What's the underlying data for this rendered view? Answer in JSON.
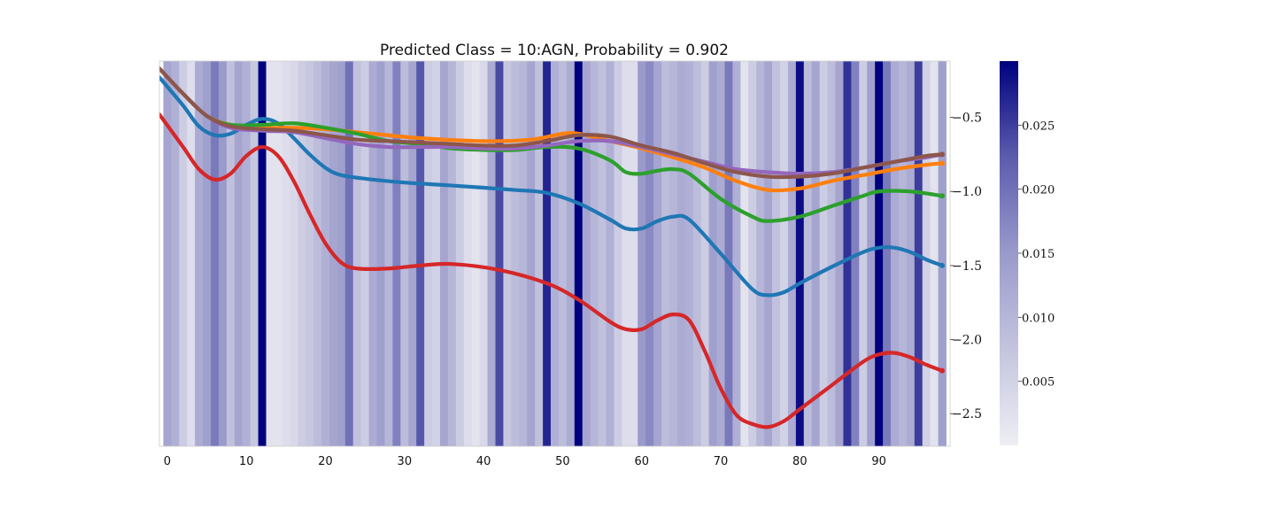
{
  "chart_data": {
    "type": "line",
    "title": "Predicted Class = 10:AGN, Probability = 0.902",
    "xlabel": "",
    "ylabel": "",
    "xlim": [
      -1,
      99
    ],
    "ylim": [
      -2.72,
      -0.12
    ],
    "y_axis_side": "right",
    "grid": false,
    "legend": "none",
    "x_ticks": [
      0,
      10,
      20,
      30,
      40,
      50,
      60,
      70,
      80,
      90
    ],
    "y_ticks": [
      -0.5,
      -1.0,
      -1.5,
      -2.0,
      -2.5
    ],
    "y_tick_labels": [
      "−0.5",
      "−1.0",
      "−1.5",
      "−2.0",
      "−2.5"
    ],
    "heatmap_background": {
      "description_values_per_timestep": true,
      "values": [
        0.013,
        0.011,
        0.006,
        0.003,
        0.012,
        0.014,
        0.019,
        0.015,
        0.008,
        0.013,
        0.011,
        0.007,
        0.03,
        0.002,
        0.002,
        0.003,
        0.004,
        0.006,
        0.007,
        0.009,
        0.011,
        0.013,
        0.014,
        0.02,
        0.008,
        0.006,
        0.012,
        0.014,
        0.01,
        0.018,
        0.009,
        0.013,
        0.023,
        0.006,
        0.005,
        0.013,
        0.01,
        0.006,
        0.003,
        0.002,
        0.004,
        0.012,
        0.024,
        0.007,
        0.009,
        0.01,
        0.013,
        0.008,
        0.027,
        0.011,
        0.009,
        0.012,
        0.03,
        0.013,
        0.01,
        0.008,
        0.011,
        0.006,
        0.003,
        0.003,
        0.015,
        0.017,
        0.013,
        0.009,
        0.01,
        0.012,
        0.011,
        0.009,
        0.006,
        0.014,
        0.012,
        0.019,
        0.011,
        0.002,
        0.006,
        0.01,
        0.013,
        0.008,
        0.005,
        0.012,
        0.029,
        0.009,
        0.013,
        0.006,
        0.009,
        0.013,
        0.026,
        0.018,
        0.006,
        0.014,
        0.03,
        0.019,
        0.012,
        0.01,
        0.012,
        0.025,
        0.005,
        0.002,
        0.014
      ],
      "colorbar": {
        "min": 0.0,
        "max": 0.03,
        "ticks": [
          0.005,
          0.01,
          0.015,
          0.02,
          0.025
        ],
        "tick_labels": [
          "0.005",
          "0.010",
          "0.015",
          "0.020",
          "0.025"
        ],
        "low_color": "#eeeef4",
        "high_color": "#00007f"
      }
    },
    "series": [
      {
        "color": "#1f77b4",
        "points": [
          [
            -1,
            -0.23
          ],
          [
            2,
            -0.42
          ],
          [
            4,
            -0.56
          ],
          [
            6,
            -0.62
          ],
          [
            8,
            -0.61
          ],
          [
            10,
            -0.55
          ],
          [
            12,
            -0.51
          ],
          [
            14,
            -0.54
          ],
          [
            16,
            -0.64
          ],
          [
            18,
            -0.75
          ],
          [
            20,
            -0.84
          ],
          [
            22,
            -0.89
          ],
          [
            26,
            -0.92
          ],
          [
            30,
            -0.94
          ],
          [
            36,
            -0.96
          ],
          [
            44,
            -0.99
          ],
          [
            48,
            -1.01
          ],
          [
            52,
            -1.08
          ],
          [
            56,
            -1.19
          ],
          [
            58,
            -1.25
          ],
          [
            60,
            -1.25
          ],
          [
            62,
            -1.2
          ],
          [
            64,
            -1.17
          ],
          [
            66,
            -1.19
          ],
          [
            70,
            -1.42
          ],
          [
            74,
            -1.66
          ],
          [
            76,
            -1.7
          ],
          [
            78,
            -1.68
          ],
          [
            80,
            -1.62
          ],
          [
            84,
            -1.51
          ],
          [
            88,
            -1.41
          ],
          [
            90,
            -1.38
          ],
          [
            92,
            -1.38
          ],
          [
            94,
            -1.41
          ],
          [
            96,
            -1.46
          ],
          [
            98,
            -1.5
          ]
        ]
      },
      {
        "color": "#ff7f0e",
        "points": [
          [
            -1,
            -0.17
          ],
          [
            2,
            -0.34
          ],
          [
            5,
            -0.49
          ],
          [
            8,
            -0.55
          ],
          [
            12,
            -0.57
          ],
          [
            16,
            -0.57
          ],
          [
            20,
            -0.58
          ],
          [
            26,
            -0.61
          ],
          [
            32,
            -0.64
          ],
          [
            40,
            -0.66
          ],
          [
            46,
            -0.65
          ],
          [
            50,
            -0.61
          ],
          [
            52,
            -0.61
          ],
          [
            56,
            -0.66
          ],
          [
            60,
            -0.71
          ],
          [
            64,
            -0.77
          ],
          [
            68,
            -0.84
          ],
          [
            72,
            -0.93
          ],
          [
            76,
            -0.99
          ],
          [
            80,
            -0.98
          ],
          [
            84,
            -0.93
          ],
          [
            88,
            -0.89
          ],
          [
            92,
            -0.85
          ],
          [
            96,
            -0.82
          ],
          [
            98,
            -0.81
          ]
        ]
      },
      {
        "color": "#2ca02c",
        "points": [
          [
            -1,
            -0.17
          ],
          [
            2,
            -0.34
          ],
          [
            5,
            -0.49
          ],
          [
            8,
            -0.55
          ],
          [
            12,
            -0.55
          ],
          [
            16,
            -0.54
          ],
          [
            20,
            -0.57
          ],
          [
            24,
            -0.61
          ],
          [
            28,
            -0.66
          ],
          [
            32,
            -0.68
          ],
          [
            36,
            -0.71
          ],
          [
            40,
            -0.72
          ],
          [
            44,
            -0.72
          ],
          [
            48,
            -0.7
          ],
          [
            52,
            -0.71
          ],
          [
            56,
            -0.79
          ],
          [
            58,
            -0.87
          ],
          [
            60,
            -0.88
          ],
          [
            62,
            -0.86
          ],
          [
            64,
            -0.85
          ],
          [
            66,
            -0.88
          ],
          [
            70,
            -1.05
          ],
          [
            74,
            -1.17
          ],
          [
            76,
            -1.2
          ],
          [
            80,
            -1.17
          ],
          [
            84,
            -1.1
          ],
          [
            88,
            -1.03
          ],
          [
            90,
            -1.0
          ],
          [
            94,
            -1.0
          ],
          [
            98,
            -1.03
          ]
        ]
      },
      {
        "color": "#d62728",
        "points": [
          [
            -1,
            -0.48
          ],
          [
            2,
            -0.7
          ],
          [
            4,
            -0.85
          ],
          [
            6,
            -0.92
          ],
          [
            8,
            -0.88
          ],
          [
            10,
            -0.76
          ],
          [
            12,
            -0.7
          ],
          [
            14,
            -0.76
          ],
          [
            16,
            -0.93
          ],
          [
            18,
            -1.15
          ],
          [
            20,
            -1.35
          ],
          [
            22,
            -1.48
          ],
          [
            24,
            -1.52
          ],
          [
            28,
            -1.52
          ],
          [
            32,
            -1.5
          ],
          [
            36,
            -1.49
          ],
          [
            42,
            -1.53
          ],
          [
            48,
            -1.62
          ],
          [
            52,
            -1.73
          ],
          [
            56,
            -1.88
          ],
          [
            58,
            -1.93
          ],
          [
            60,
            -1.93
          ],
          [
            62,
            -1.87
          ],
          [
            64,
            -1.83
          ],
          [
            66,
            -1.87
          ],
          [
            68,
            -2.08
          ],
          [
            70,
            -2.33
          ],
          [
            72,
            -2.51
          ],
          [
            74,
            -2.57
          ],
          [
            76,
            -2.59
          ],
          [
            78,
            -2.55
          ],
          [
            80,
            -2.47
          ],
          [
            84,
            -2.31
          ],
          [
            88,
            -2.15
          ],
          [
            90,
            -2.1
          ],
          [
            92,
            -2.09
          ],
          [
            94,
            -2.12
          ],
          [
            96,
            -2.17
          ],
          [
            98,
            -2.21
          ]
        ]
      },
      {
        "color": "#9467bd",
        "points": [
          [
            -1,
            -0.17
          ],
          [
            2,
            -0.34
          ],
          [
            5,
            -0.49
          ],
          [
            8,
            -0.57
          ],
          [
            12,
            -0.59
          ],
          [
            16,
            -0.6
          ],
          [
            20,
            -0.64
          ],
          [
            24,
            -0.68
          ],
          [
            28,
            -0.7
          ],
          [
            32,
            -0.7
          ],
          [
            36,
            -0.7
          ],
          [
            40,
            -0.71
          ],
          [
            44,
            -0.71
          ],
          [
            48,
            -0.69
          ],
          [
            52,
            -0.66
          ],
          [
            56,
            -0.66
          ],
          [
            60,
            -0.7
          ],
          [
            64,
            -0.75
          ],
          [
            68,
            -0.8
          ],
          [
            72,
            -0.85
          ],
          [
            76,
            -0.87
          ],
          [
            80,
            -0.88
          ],
          [
            84,
            -0.87
          ],
          [
            88,
            -0.84
          ],
          [
            92,
            -0.8
          ],
          [
            96,
            -0.77
          ],
          [
            98,
            -0.75
          ]
        ]
      },
      {
        "color": "#8c564b",
        "points": [
          [
            -1,
            -0.17
          ],
          [
            2,
            -0.34
          ],
          [
            5,
            -0.49
          ],
          [
            8,
            -0.56
          ],
          [
            12,
            -0.58
          ],
          [
            16,
            -0.59
          ],
          [
            20,
            -0.62
          ],
          [
            24,
            -0.65
          ],
          [
            28,
            -0.66
          ],
          [
            32,
            -0.67
          ],
          [
            36,
            -0.68
          ],
          [
            40,
            -0.69
          ],
          [
            44,
            -0.69
          ],
          [
            48,
            -0.66
          ],
          [
            52,
            -0.62
          ],
          [
            56,
            -0.63
          ],
          [
            60,
            -0.69
          ],
          [
            64,
            -0.74
          ],
          [
            68,
            -0.81
          ],
          [
            72,
            -0.87
          ],
          [
            76,
            -0.9
          ],
          [
            80,
            -0.9
          ],
          [
            84,
            -0.88
          ],
          [
            88,
            -0.84
          ],
          [
            92,
            -0.8
          ],
          [
            96,
            -0.76
          ],
          [
            98,
            -0.75
          ]
        ]
      }
    ]
  }
}
